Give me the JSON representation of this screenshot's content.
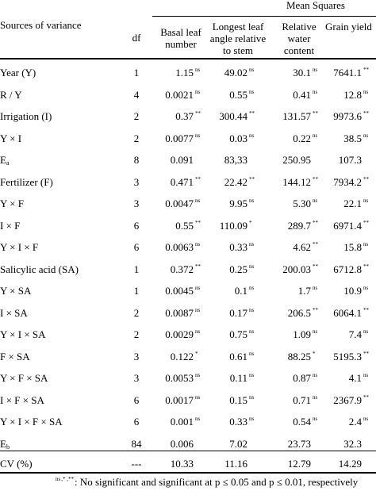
{
  "header": {
    "group_title": "Mean Squares",
    "col_source": "Sources of variance",
    "col_df": "df",
    "col1_line1": "Basal leaf",
    "col1_line2": "number",
    "col2_line1": "Longest leaf",
    "col2_line2": "angle relative",
    "col2_line3": "to stem",
    "col3_line1": "Relative",
    "col3_line2": "water",
    "col3_line3": "content",
    "col4_line1": "Grain yield"
  },
  "rows": [
    {
      "src": "Year (Y)",
      "sub": "",
      "df": "1",
      "v": [
        "1.15",
        "49.02",
        "30.1",
        "7641.1"
      ],
      "s": [
        "ns",
        "ns",
        "ns",
        "**"
      ]
    },
    {
      "src": "R / Y",
      "sub": "",
      "df": "4",
      "v": [
        "0.0021",
        "0.55",
        "0.41",
        "12.8"
      ],
      "s": [
        "ns",
        "ns",
        "ns",
        "ns"
      ]
    },
    {
      "src": "Irrigation (I)",
      "sub": "",
      "df": "2",
      "v": [
        "0.37",
        "300.44",
        "131.57",
        "9973.6"
      ],
      "s": [
        "**",
        "**",
        "**",
        "**"
      ]
    },
    {
      "src": "Y × I",
      "sub": "",
      "df": "2",
      "v": [
        "0.0077",
        "0.03",
        "0.22",
        "38.5"
      ],
      "s": [
        "ns",
        "ns",
        "ns",
        "ns"
      ]
    },
    {
      "src": "E",
      "sub": "a",
      "df": "8",
      "v": [
        "0.091",
        "83,33",
        "250.95",
        "107.3"
      ],
      "s": [
        "",
        "",
        "",
        ""
      ]
    },
    {
      "src": "Fertilizer (F)",
      "sub": "",
      "df": "3",
      "v": [
        "0.471",
        "22.42",
        "144.12",
        "7934.2"
      ],
      "s": [
        "**",
        "**",
        "**",
        "**"
      ]
    },
    {
      "src": "Y × F",
      "sub": "",
      "df": "3",
      "v": [
        "0.0047",
        "9.95",
        "5.30",
        "22.1"
      ],
      "s": [
        "ns",
        "ns",
        "ns",
        "ns"
      ]
    },
    {
      "src": "I × F",
      "sub": "",
      "df": "6",
      "v": [
        "0.55",
        "110.09",
        "289.7",
        "6971.4"
      ],
      "s": [
        "**",
        "*",
        "**",
        "**"
      ]
    },
    {
      "src": "Y × I × F",
      "sub": "",
      "df": "6",
      "v": [
        "0.0063",
        "0.33",
        "4.62",
        "15.8"
      ],
      "s": [
        "ns",
        "ns",
        "**",
        "ns"
      ]
    },
    {
      "src": "Salicylic acid (SA)",
      "sub": "",
      "df": "1",
      "v": [
        "0.372",
        "0.25",
        "200.03",
        "6712.8"
      ],
      "s": [
        "**",
        "ns",
        "**",
        "**"
      ]
    },
    {
      "src": "Y × SA",
      "sub": "",
      "df": "1",
      "v": [
        "0.0045",
        "0.1",
        "1.7",
        "10.9"
      ],
      "s": [
        "ns",
        "ns",
        "ns",
        "ns"
      ]
    },
    {
      "src": "I × SA",
      "sub": "",
      "df": "2",
      "v": [
        "0.0087",
        "0.17",
        "206.5",
        "6064.1"
      ],
      "s": [
        "ns",
        "ns",
        "**",
        "**"
      ]
    },
    {
      "src": "Y × I × SA",
      "sub": "",
      "df": "2",
      "v": [
        "0.0029",
        "0.75",
        "1.09",
        "7.4"
      ],
      "s": [
        "ns",
        "ns",
        "ns",
        "ns"
      ]
    },
    {
      "src": "F × SA",
      "sub": "",
      "df": "3",
      "v": [
        "0.122",
        "0.61",
        "88.25",
        "5195.3"
      ],
      "s": [
        "*",
        "ns",
        "*",
        "**"
      ]
    },
    {
      "src": "Y × F × SA",
      "sub": "",
      "df": "3",
      "v": [
        "0.0053",
        "0.11",
        "0.87",
        "4.1"
      ],
      "s": [
        "ns",
        "ns",
        "ns",
        "ns"
      ]
    },
    {
      "src": "I × F × SA",
      "sub": "",
      "df": "6",
      "v": [
        "0.0017",
        "0.15",
        "0.71",
        "2367.9"
      ],
      "s": [
        "ns",
        "ns",
        "ns",
        "**"
      ]
    },
    {
      "src": "Y × I × F × SA",
      "sub": "",
      "df": "6",
      "v": [
        "0.001",
        "0.33",
        "0.54",
        "2.4"
      ],
      "s": [
        "ns",
        "ns",
        "ns",
        "ns"
      ]
    },
    {
      "src": "E",
      "sub": "b",
      "df": "84",
      "v": [
        "0.006",
        "7.02",
        "23.73",
        "32.3"
      ],
      "s": [
        "",
        "",
        "",
        ""
      ]
    },
    {
      "src": "CV (%)",
      "sub": "",
      "df": "---",
      "v": [
        "10.33",
        "11.16",
        "12.79",
        "14.29"
      ],
      "s": [
        "",
        "",
        "",
        ""
      ]
    }
  ],
  "footnote": {
    "sup_ns": "ns",
    "sup_sig": ",* ,**",
    "text": ": No significant and significant at p ≤ 0.05 and p ≤ 0.01, respectively"
  }
}
